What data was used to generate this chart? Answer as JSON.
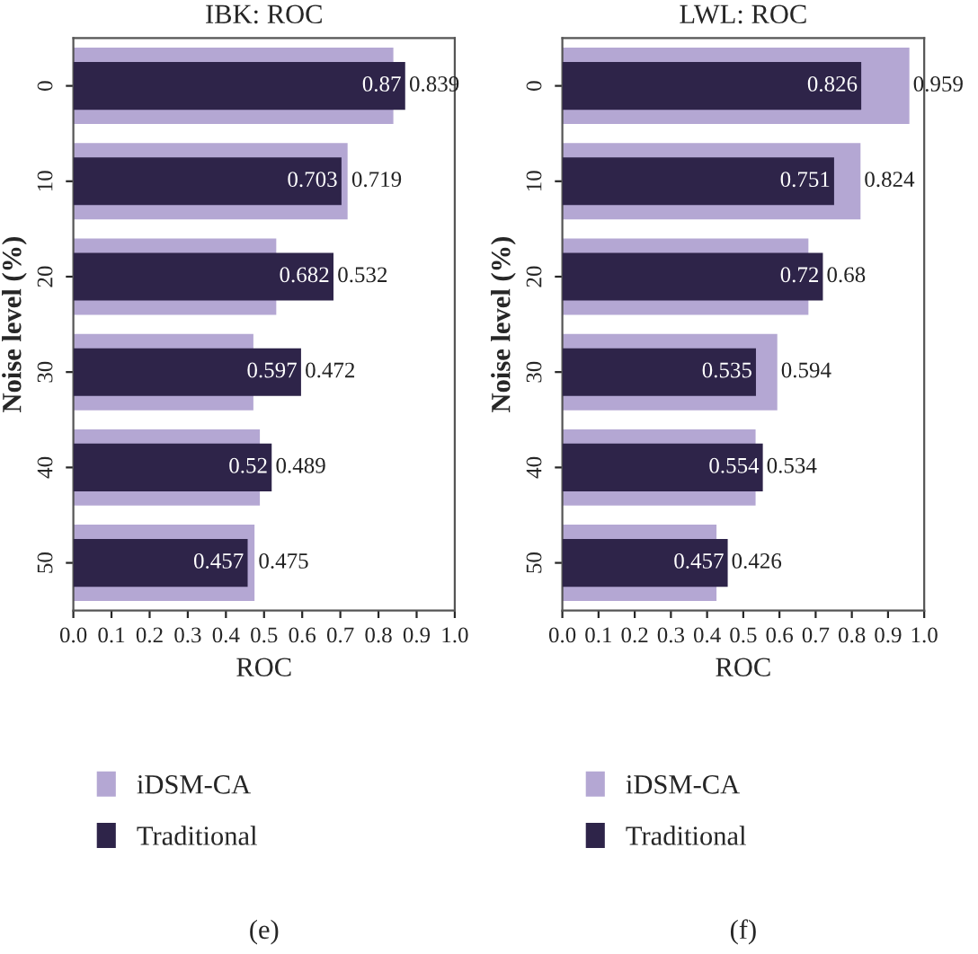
{
  "chart_data": [
    {
      "type": "bar",
      "orientation": "horizontal",
      "title": "IBK: ROC",
      "xlabel": "ROC",
      "ylabel": "Noise level (%)",
      "categories": [
        "0",
        "10",
        "20",
        "30",
        "40",
        "50"
      ],
      "series": [
        {
          "name": "iDSM-CA",
          "color": "#b4a7d3",
          "values": [
            0.839,
            0.719,
            0.532,
            0.472,
            0.489,
            0.475
          ]
        },
        {
          "name": "Traditional",
          "color": "#2e2449",
          "values": [
            0.87,
            0.703,
            0.682,
            0.597,
            0.52,
            0.457
          ]
        }
      ],
      "xlim": [
        0,
        1
      ],
      "xticks": [
        "0.0",
        "0.1",
        "0.2",
        "0.3",
        "0.4",
        "0.5",
        "0.6",
        "0.7",
        "0.8",
        "0.9",
        "1.0"
      ],
      "data_labels": true,
      "legend": "bottom",
      "grid": false,
      "annotations": [
        "(e)"
      ]
    },
    {
      "type": "bar",
      "orientation": "horizontal",
      "title": "LWL: ROC",
      "xlabel": "ROC",
      "ylabel": "Noise level (%)",
      "categories": [
        "0",
        "10",
        "20",
        "30",
        "40",
        "50"
      ],
      "series": [
        {
          "name": "iDSM-CA",
          "color": "#b4a7d3",
          "values": [
            0.959,
            0.824,
            0.68,
            0.594,
            0.534,
            0.426
          ]
        },
        {
          "name": "Traditional",
          "color": "#2e2449",
          "values": [
            0.826,
            0.751,
            0.72,
            0.535,
            0.554,
            0.457
          ]
        }
      ],
      "xlim": [
        0,
        1
      ],
      "xticks": [
        "0.0",
        "0.1",
        "0.2",
        "0.3",
        "0.4",
        "0.5",
        "0.6",
        "0.7",
        "0.8",
        "0.9",
        "1.0"
      ],
      "data_labels": true,
      "legend": "bottom",
      "grid": false,
      "annotations": [
        "(f)"
      ]
    }
  ]
}
